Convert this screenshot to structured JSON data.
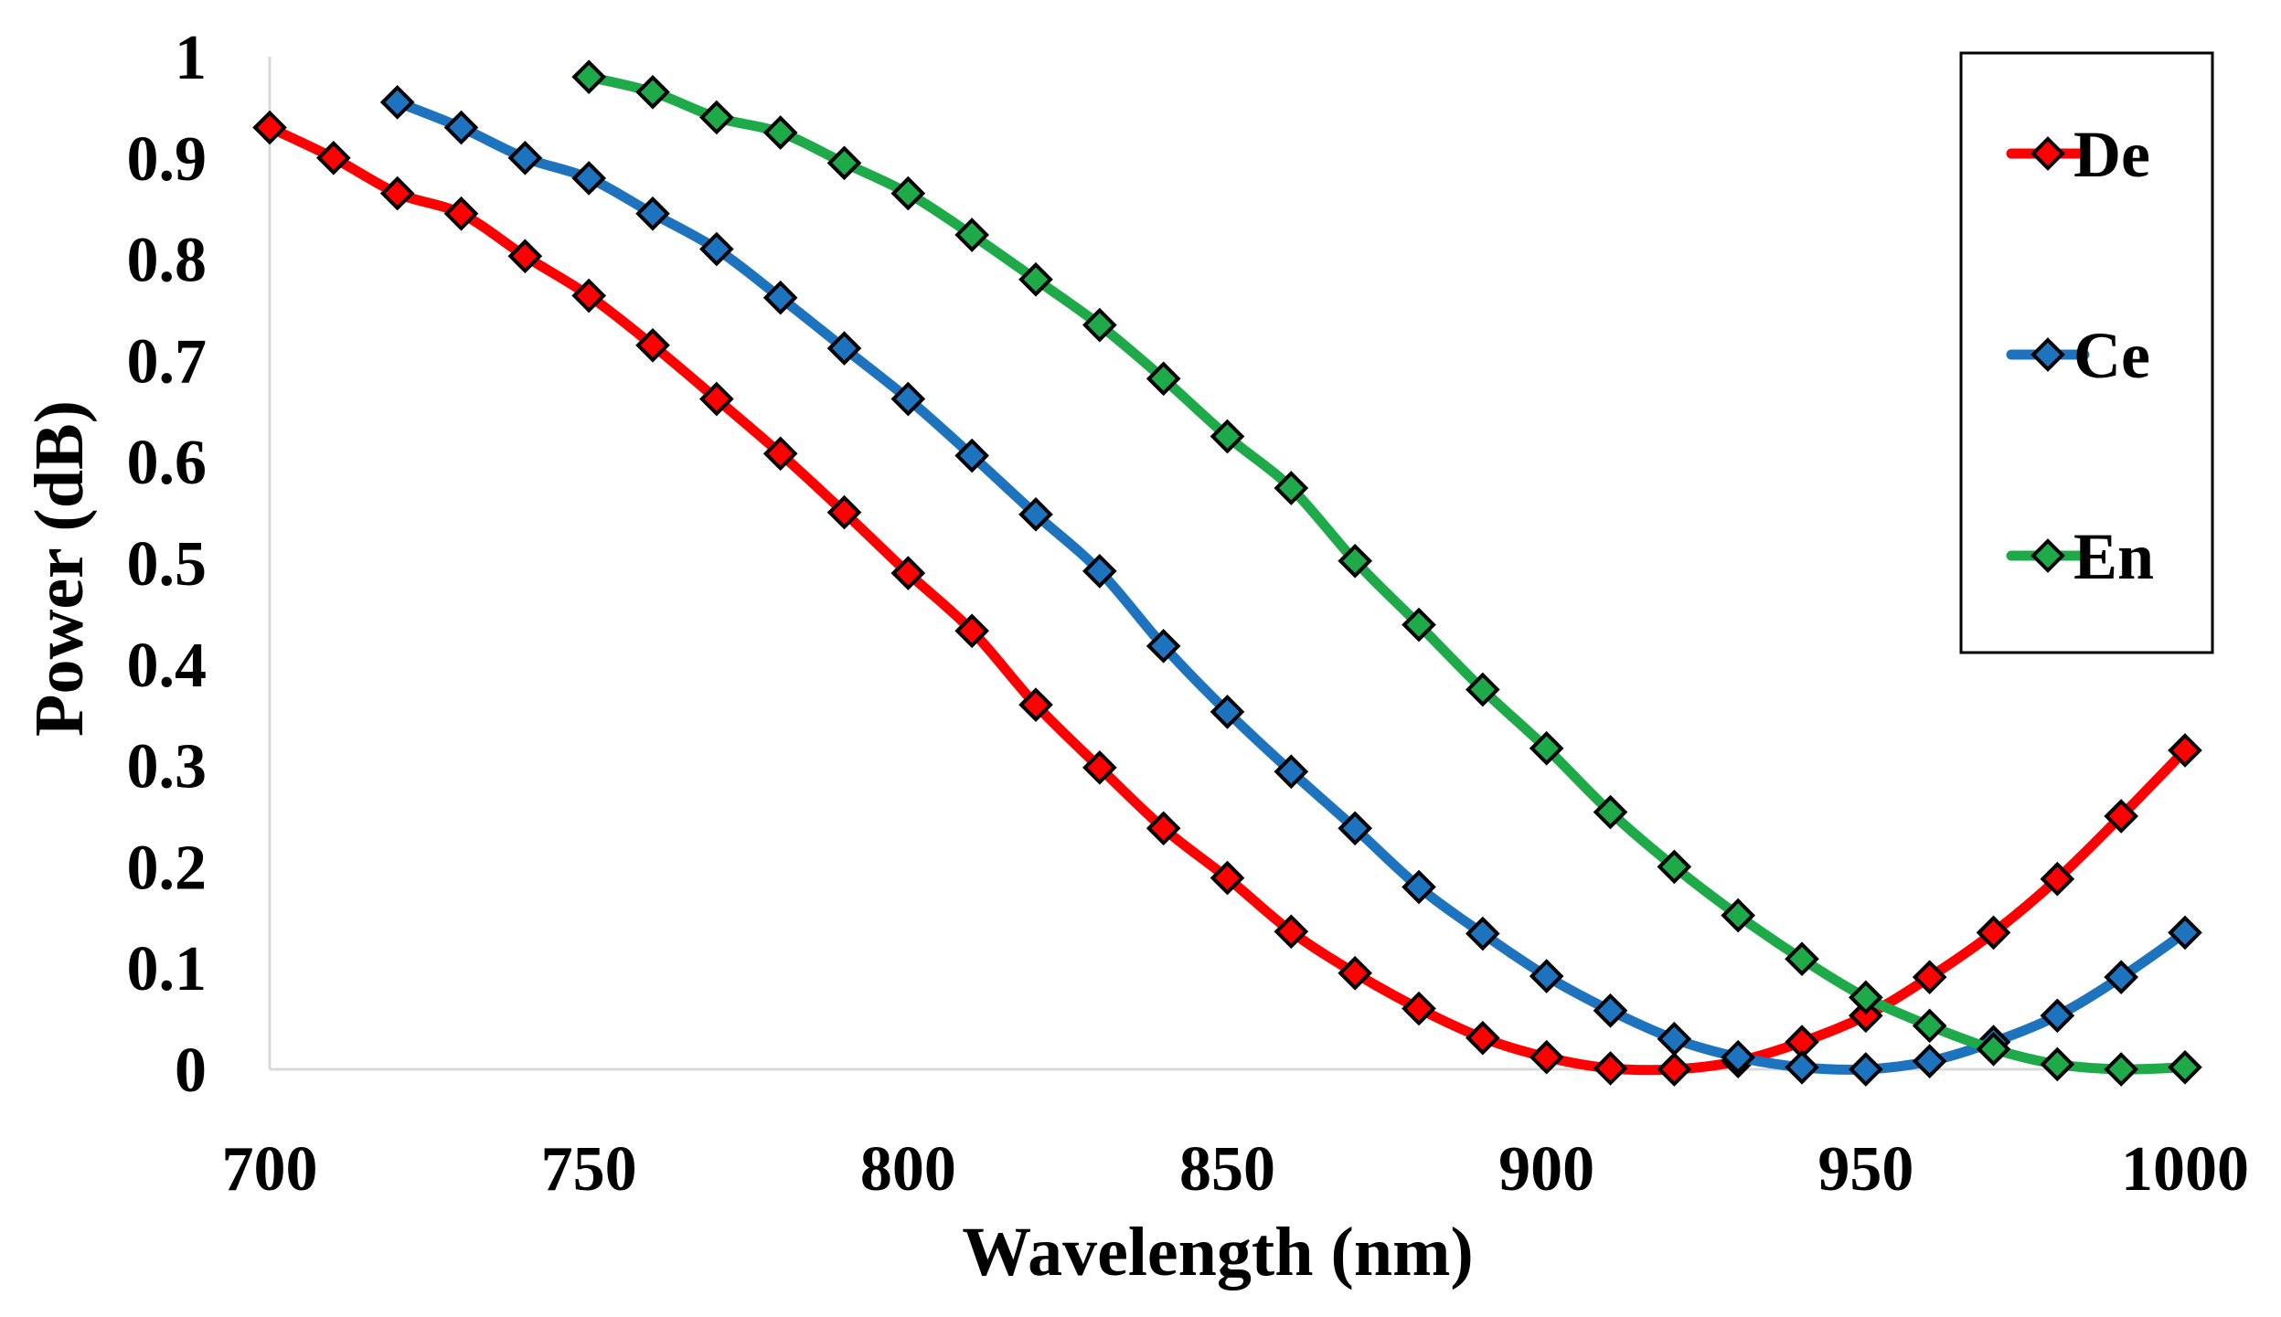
{
  "chart_data": {
    "type": "line",
    "title": "",
    "xlabel": "Wavelength (nm)",
    "ylabel": "Power (dB)",
    "xlim": [
      700,
      1000
    ],
    "ylim": [
      0,
      1
    ],
    "xticks": [
      700,
      750,
      800,
      850,
      900,
      950,
      1000
    ],
    "yticks": [
      0,
      0.1,
      0.2,
      0.3,
      0.4,
      0.5,
      0.6,
      0.7,
      0.8,
      0.9,
      1
    ],
    "xtick_labels": [
      "700",
      "750",
      "800",
      "850",
      "900",
      "950",
      "1000"
    ],
    "ytick_labels": [
      "0",
      "0.1",
      "0.2",
      "0.3",
      "0.4",
      "0.5",
      "0.6",
      "0.7",
      "0.8",
      "0.9",
      "1"
    ],
    "grid": false,
    "legend_position": "top-right",
    "marker": "diamond",
    "series": [
      {
        "name": "De",
        "color": "#ff0000",
        "x": [
          700,
          710,
          720,
          730,
          740,
          750,
          760,
          770,
          780,
          790,
          800,
          810,
          820,
          830,
          840,
          850,
          860,
          870,
          880,
          890,
          900,
          910,
          920,
          930,
          940,
          950,
          960,
          970,
          980,
          990,
          1000
        ],
        "y": [
          0.93,
          0.9,
          0.865,
          0.845,
          0.803,
          0.764,
          0.715,
          0.662,
          0.608,
          0.55,
          0.49,
          0.433,
          0.36,
          0.298,
          0.238,
          0.189,
          0.136,
          0.095,
          0.06,
          0.031,
          0.012,
          0.001,
          0.0,
          0.008,
          0.027,
          0.053,
          0.091,
          0.135,
          0.188,
          0.25,
          0.315
        ]
      },
      {
        "name": "Ce",
        "color": "#1e73be",
        "x": [
          720,
          730,
          740,
          750,
          760,
          770,
          780,
          790,
          800,
          810,
          820,
          830,
          840,
          850,
          860,
          870,
          880,
          890,
          900,
          910,
          920,
          930,
          940,
          950,
          960,
          970,
          980,
          990,
          1000
        ],
        "y": [
          0.955,
          0.93,
          0.9,
          0.88,
          0.845,
          0.81,
          0.762,
          0.712,
          0.662,
          0.606,
          0.548,
          0.492,
          0.418,
          0.353,
          0.294,
          0.238,
          0.18,
          0.134,
          0.092,
          0.058,
          0.03,
          0.012,
          0.002,
          0.0,
          0.008,
          0.027,
          0.053,
          0.091,
          0.135
        ]
      },
      {
        "name": "En",
        "color": "#1faa4a",
        "x": [
          750,
          760,
          770,
          780,
          790,
          800,
          810,
          820,
          830,
          840,
          850,
          860,
          870,
          880,
          890,
          900,
          910,
          920,
          930,
          940,
          950,
          960,
          970,
          980,
          990,
          1000
        ],
        "y": [
          0.98,
          0.965,
          0.94,
          0.925,
          0.895,
          0.865,
          0.824,
          0.78,
          0.735,
          0.682,
          0.625,
          0.574,
          0.502,
          0.439,
          0.375,
          0.317,
          0.254,
          0.2,
          0.152,
          0.109,
          0.071,
          0.043,
          0.02,
          0.005,
          0.0,
          0.002
        ]
      }
    ]
  }
}
